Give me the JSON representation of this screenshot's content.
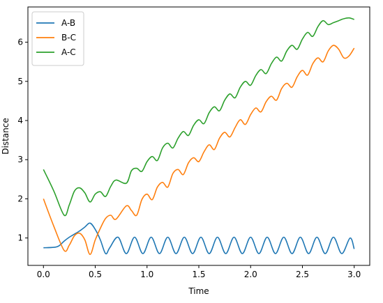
{
  "chart_data": {
    "type": "line",
    "title": "",
    "xlabel": "Time",
    "ylabel": "Distance",
    "xlim": [
      -0.15,
      3.15
    ],
    "ylim": [
      0.3,
      6.9
    ],
    "x_ticks": [
      0.0,
      0.5,
      1.0,
      1.5,
      2.0,
      2.5,
      3.0
    ],
    "x_tick_labels": [
      "0.0",
      "0.5",
      "1.0",
      "1.5",
      "2.0",
      "2.5",
      "3.0"
    ],
    "y_ticks": [
      1,
      2,
      3,
      4,
      5,
      6
    ],
    "y_tick_labels": [
      "1",
      "2",
      "3",
      "4",
      "5",
      "6"
    ],
    "grid": false,
    "legend": "top-left",
    "series": [
      {
        "name": "A-B",
        "color": "#1f77b4",
        "x": [
          0.0,
          0.1,
          0.15,
          0.2,
          0.25,
          0.3,
          0.35,
          0.4,
          0.45,
          0.5,
          0.55,
          0.6,
          0.64,
          0.72,
          0.8,
          0.88,
          0.96,
          1.04,
          1.12,
          1.2,
          1.28,
          1.36,
          1.44,
          1.52,
          1.6,
          1.68,
          1.76,
          1.84,
          1.92,
          2.0,
          2.08,
          2.16,
          2.24,
          2.32,
          2.4,
          2.48,
          2.56,
          2.64,
          2.72,
          2.8,
          2.88,
          2.96,
          3.0
        ],
        "y": [
          0.75,
          0.76,
          0.8,
          0.92,
          1.02,
          1.1,
          1.18,
          1.28,
          1.38,
          1.22,
          0.95,
          0.6,
          0.75,
          1.02,
          0.6,
          1.02,
          0.6,
          1.02,
          0.6,
          1.02,
          0.6,
          1.02,
          0.6,
          1.02,
          0.6,
          1.02,
          0.6,
          1.02,
          0.6,
          1.02,
          0.6,
          1.02,
          0.6,
          1.02,
          0.6,
          1.02,
          0.6,
          1.02,
          0.6,
          1.02,
          0.6,
          1.0,
          0.72
        ]
      },
      {
        "name": "B-C",
        "color": "#ff7f0e",
        "x": [
          0.0,
          0.1,
          0.2,
          0.25,
          0.3,
          0.35,
          0.4,
          0.45,
          0.5,
          0.55,
          0.6,
          0.65,
          0.7,
          0.8,
          0.85,
          0.9,
          0.95,
          1.0,
          1.05,
          1.1,
          1.15,
          1.2,
          1.25,
          1.3,
          1.35,
          1.4,
          1.45,
          1.5,
          1.55,
          1.6,
          1.65,
          1.7,
          1.75,
          1.8,
          1.85,
          1.9,
          1.95,
          2.0,
          2.05,
          2.1,
          2.15,
          2.2,
          2.25,
          2.3,
          2.35,
          2.4,
          2.45,
          2.5,
          2.55,
          2.6,
          2.65,
          2.7,
          2.75,
          2.8,
          2.85,
          2.9,
          2.95,
          3.0
        ],
        "y": [
          2.0,
          1.3,
          0.68,
          0.82,
          1.06,
          1.12,
          0.95,
          0.58,
          0.95,
          1.25,
          1.5,
          1.58,
          1.48,
          1.82,
          1.7,
          1.58,
          1.98,
          2.12,
          1.98,
          2.3,
          2.42,
          2.3,
          2.65,
          2.75,
          2.62,
          2.92,
          3.05,
          2.95,
          3.2,
          3.38,
          3.26,
          3.55,
          3.7,
          3.58,
          3.82,
          4.02,
          3.9,
          4.15,
          4.32,
          4.22,
          4.48,
          4.62,
          4.52,
          4.82,
          4.95,
          4.85,
          5.12,
          5.28,
          5.16,
          5.45,
          5.6,
          5.5,
          5.78,
          5.92,
          5.82,
          5.6,
          5.65,
          5.85
        ]
      },
      {
        "name": "A-C",
        "color": "#2ca02c",
        "x": [
          0.0,
          0.1,
          0.2,
          0.25,
          0.3,
          0.35,
          0.4,
          0.45,
          0.5,
          0.55,
          0.6,
          0.65,
          0.7,
          0.8,
          0.85,
          0.9,
          0.95,
          1.0,
          1.05,
          1.1,
          1.15,
          1.2,
          1.25,
          1.3,
          1.35,
          1.4,
          1.45,
          1.5,
          1.55,
          1.6,
          1.65,
          1.7,
          1.75,
          1.8,
          1.85,
          1.9,
          1.95,
          2.0,
          2.05,
          2.1,
          2.15,
          2.2,
          2.25,
          2.3,
          2.35,
          2.4,
          2.45,
          2.5,
          2.55,
          2.6,
          2.65,
          2.7,
          2.75,
          2.8,
          2.85,
          2.9,
          2.95,
          3.0
        ],
        "y": [
          2.75,
          2.2,
          1.58,
          1.85,
          2.2,
          2.28,
          2.15,
          1.92,
          2.12,
          2.18,
          2.06,
          2.32,
          2.48,
          2.4,
          2.72,
          2.78,
          2.7,
          2.95,
          3.08,
          2.98,
          3.3,
          3.42,
          3.3,
          3.55,
          3.72,
          3.62,
          3.88,
          4.02,
          3.92,
          4.2,
          4.35,
          4.25,
          4.52,
          4.68,
          4.58,
          4.85,
          5.0,
          4.9,
          5.15,
          5.3,
          5.2,
          5.45,
          5.62,
          5.52,
          5.78,
          5.92,
          5.82,
          6.08,
          6.25,
          6.15,
          6.4,
          6.55,
          6.45,
          6.5,
          6.55,
          6.6,
          6.62,
          6.58
        ]
      }
    ]
  }
}
